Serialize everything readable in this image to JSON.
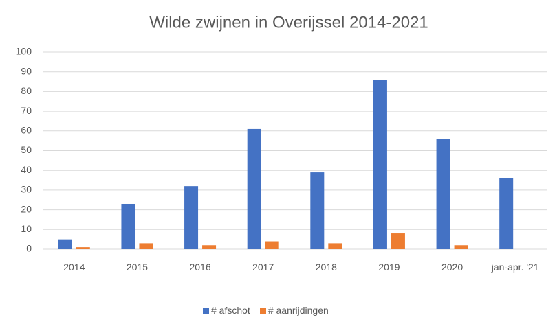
{
  "chart_data": {
    "type": "bar",
    "title": "Wilde zwijnen in Overijssel 2014-2021",
    "categories": [
      "2014",
      "2015",
      "2016",
      "2017",
      "2018",
      "2019",
      "2020",
      "jan-apr. '21"
    ],
    "series": [
      {
        "name": "# afschot",
        "color": "#4472c4",
        "values": [
          5,
          23,
          32,
          61,
          39,
          86,
          56,
          36
        ]
      },
      {
        "name": "# aanrijdingen",
        "color": "#ed7d31",
        "values": [
          1,
          3,
          2,
          4,
          3,
          8,
          2,
          0
        ]
      }
    ],
    "ylim": [
      0,
      100
    ],
    "yticks": [
      0,
      10,
      20,
      30,
      40,
      50,
      60,
      70,
      80,
      90,
      100
    ],
    "grid": true,
    "legend": "bottom"
  }
}
